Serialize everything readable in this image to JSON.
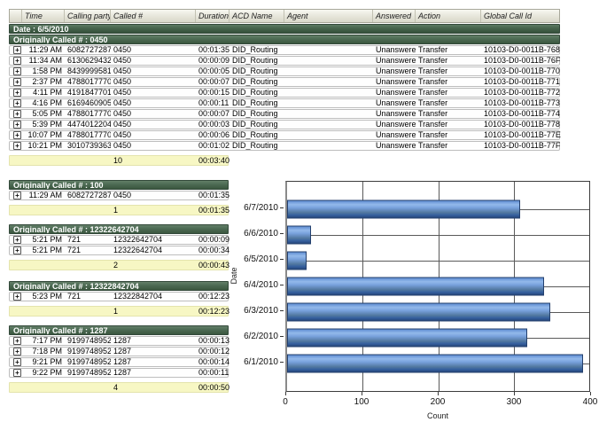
{
  "icons": {
    "expand": "+"
  },
  "main_table": {
    "columns": [
      "",
      "Time",
      "Calling party #",
      "Called #",
      "Duration",
      "ACD Name",
      "Agent",
      "Answered",
      "Action",
      "Global Call Id"
    ],
    "date_header": "Date : 6/5/2010",
    "group_header": "Originally Called # : 0450",
    "rows": [
      {
        "time": "11:29 AM",
        "calling": "6082727287",
        "called": "0450",
        "duration": "00:01:35",
        "acd": "DID_Routing",
        "agent": "",
        "answered": "Unanswered",
        "action": "Transfer",
        "global_id": "10103-D0-0011B-768"
      },
      {
        "time": "11:34 AM",
        "calling": "6130629432",
        "called": "0450",
        "duration": "00:00:09",
        "acd": "DID_Routing",
        "agent": "",
        "answered": "Unanswered",
        "action": "Transfer",
        "global_id": "10103-D0-0011B-76F"
      },
      {
        "time": "1:58 PM",
        "calling": "8439999581",
        "called": "0450",
        "duration": "00:00:05",
        "acd": "DID_Routing",
        "agent": "",
        "answered": "Unanswered",
        "action": "Transfer",
        "global_id": "10103-D0-0011B-770"
      },
      {
        "time": "2:37 PM",
        "calling": "4788017770",
        "called": "0450",
        "duration": "00:00:07",
        "acd": "DID_Routing",
        "agent": "",
        "answered": "Unanswered",
        "action": "Transfer",
        "global_id": "10103-D0-0011B-771"
      },
      {
        "time": "4:11 PM",
        "calling": "4191847701",
        "called": "0450",
        "duration": "00:00:15",
        "acd": "DID_Routing",
        "agent": "",
        "answered": "Unanswered",
        "action": "Transfer",
        "global_id": "10103-D0-0011B-772"
      },
      {
        "time": "4:16 PM",
        "calling": "6169460905",
        "called": "0450",
        "duration": "00:00:11",
        "acd": "DID_Routing",
        "agent": "",
        "answered": "Unanswered",
        "action": "Transfer",
        "global_id": "10103-D0-0011B-773"
      },
      {
        "time": "5:05 PM",
        "calling": "4788017770",
        "called": "0450",
        "duration": "00:00:07",
        "acd": "DID_Routing",
        "agent": "",
        "answered": "Unanswered",
        "action": "Transfer",
        "global_id": "10103-D0-0011B-774"
      },
      {
        "time": "5:39 PM",
        "calling": "4474012204",
        "called": "0450",
        "duration": "00:00:03",
        "acd": "DID_Routing",
        "agent": "",
        "answered": "Unanswered",
        "action": "Transfer",
        "global_id": "10103-D0-0011B-778"
      },
      {
        "time": "10:07 PM",
        "calling": "4788017770",
        "called": "0450",
        "duration": "00:00:06",
        "acd": "DID_Routing",
        "agent": "",
        "answered": "Unanswered",
        "action": "Transfer",
        "global_id": "10103-D0-0011B-77E"
      },
      {
        "time": "10:21 PM",
        "calling": "3010739363",
        "called": "0450",
        "duration": "00:01:02",
        "acd": "DID_Routing",
        "agent": "",
        "answered": "Unanswered",
        "action": "Transfer",
        "global_id": "10103-D0-0011B-77F"
      }
    ],
    "summary": {
      "count": "10",
      "duration": "00:03:40"
    }
  },
  "sections": [
    {
      "title": "Originally Called # : 100",
      "rows": [
        {
          "time": "11:29 AM",
          "calling": "6082727287",
          "called": "0450",
          "duration": "00:01:35"
        }
      ],
      "summary": {
        "count": "1",
        "duration": "00:01:35"
      }
    },
    {
      "title": "Originally Called # : 12322642704",
      "rows": [
        {
          "time": "5:21 PM",
          "calling": "721",
          "called": "12322642704",
          "duration": "00:00:09"
        },
        {
          "time": "5:21 PM",
          "calling": "721",
          "called": "12322642704",
          "duration": "00:00:34"
        }
      ],
      "summary": {
        "count": "2",
        "duration": "00:00:43"
      }
    },
    {
      "title": "Originally Called # : 12322842704",
      "rows": [
        {
          "time": "5:23 PM",
          "calling": "721",
          "called": "12322842704",
          "duration": "00:12:23"
        }
      ],
      "summary": {
        "count": "1",
        "duration": "00:12:23"
      }
    },
    {
      "title": "Originally Called # : 1287",
      "rows": [
        {
          "time": "7:17 PM",
          "calling": "9199748952",
          "called": "1287",
          "duration": "00:00:13"
        },
        {
          "time": "7:18 PM",
          "calling": "9199748952",
          "called": "1287",
          "duration": "00:00:12"
        },
        {
          "time": "9:21 PM",
          "calling": "9199748952",
          "called": "1287",
          "duration": "00:00:14"
        },
        {
          "time": "9:22 PM",
          "calling": "9199748952",
          "called": "1287",
          "duration": "00:00:11"
        }
      ],
      "summary": {
        "count": "4",
        "duration": "00:00:50"
      }
    }
  ],
  "chart_data": {
    "type": "bar",
    "orientation": "horizontal",
    "categories": [
      "6/7/2010",
      "6/6/2010",
      "6/5/2010",
      "6/4/2010",
      "6/3/2010",
      "6/2/2010",
      "6/1/2010"
    ],
    "values": [
      308,
      32,
      26,
      340,
      348,
      318,
      392
    ],
    "title": "",
    "xlabel": "Count",
    "ylabel": "Date",
    "xlim": [
      0,
      400
    ],
    "x_ticks": [
      0,
      100,
      200,
      300,
      400
    ],
    "grid": true,
    "legend": false,
    "bar_color_light": "#93b9ea",
    "bar_color_dark": "#27477c"
  },
  "colors": {
    "group_bar_green": "#46634c",
    "summary_yellow": "#f7f7c4",
    "header_gray": "#e4e3d7"
  }
}
